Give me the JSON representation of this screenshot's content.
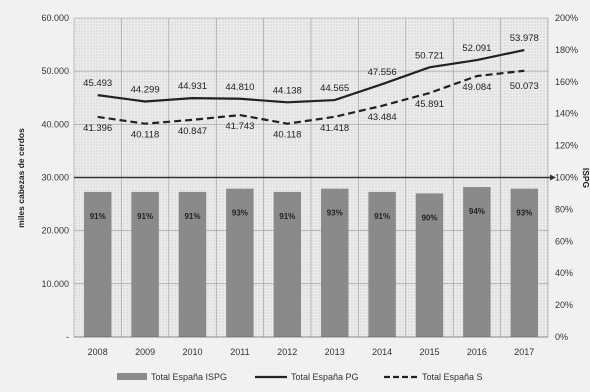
{
  "chart_data": {
    "type": "bar",
    "categories": [
      "2008",
      "2009",
      "2010",
      "2011",
      "2012",
      "2013",
      "2014",
      "2015",
      "2016",
      "2017"
    ],
    "ylabel": "miles cabezas de cerdos",
    "y2label": "ISPG",
    "ylim": [
      0,
      60000
    ],
    "y2lim": [
      0,
      200
    ],
    "yticks": [
      "-",
      "10.000",
      "20.000",
      "30.000",
      "40.000",
      "50.000",
      "60.000"
    ],
    "y2ticks": [
      "0%",
      "20%",
      "40%",
      "60%",
      "80%",
      "100%",
      "120%",
      "140%",
      "160%",
      "180%",
      "200%"
    ],
    "reference_line": 100,
    "grid": true,
    "legend_position": "bottom",
    "series": [
      {
        "name": "Total España  ISPG",
        "kind": "bar",
        "axis": "right",
        "color": "#8a8a8a",
        "values": [
          91,
          91,
          91,
          93,
          91,
          93,
          91,
          90,
          94,
          93
        ],
        "labels": [
          "91%",
          "91%",
          "91%",
          "93%",
          "91%",
          "93%",
          "91%",
          "90%",
          "94%",
          "93%"
        ]
      },
      {
        "name": "Total España PG",
        "kind": "line",
        "axis": "left",
        "style": "solid",
        "color": "#222222",
        "values": [
          45493,
          44299,
          44931,
          44810,
          44138,
          44565,
          47556,
          50721,
          52091,
          53978
        ],
        "labels": [
          "45.493",
          "44.299",
          "44.931",
          "44.810",
          "44.138",
          "44.565",
          "47.556",
          "50.721",
          "52.091",
          "53.978"
        ]
      },
      {
        "name": "Total España S",
        "kind": "line",
        "axis": "left",
        "style": "dashed",
        "color": "#222222",
        "values": [
          41396,
          40118,
          40847,
          41743,
          40118,
          41418,
          43484,
          45891,
          49084,
          50073
        ],
        "labels": [
          "41.396",
          "40.118",
          "40.847",
          "41.743",
          "40.118",
          "41.418",
          "43.484",
          "45.891",
          "49.084",
          "50.073"
        ]
      }
    ]
  }
}
